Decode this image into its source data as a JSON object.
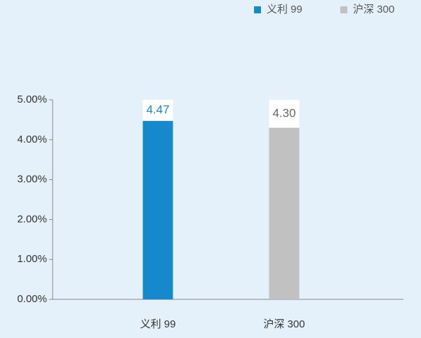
{
  "chart_data": {
    "type": "bar",
    "categories": [
      "义利 99",
      "沪深 300"
    ],
    "values": [
      4.47,
      4.3
    ],
    "value_labels": [
      "4.47",
      "4.30"
    ],
    "colors": [
      "#1589cb",
      "#c0c1c0"
    ],
    "ylim": [
      0,
      5
    ],
    "yticks": [
      {
        "value": 0,
        "label": "0.00%"
      },
      {
        "value": 1,
        "label": "1.00%"
      },
      {
        "value": 2,
        "label": "2.00%"
      },
      {
        "value": 3,
        "label": "3.00%"
      },
      {
        "value": 4,
        "label": "4.00%"
      },
      {
        "value": 5,
        "label": "5.00%"
      }
    ],
    "legend": "top-right"
  }
}
